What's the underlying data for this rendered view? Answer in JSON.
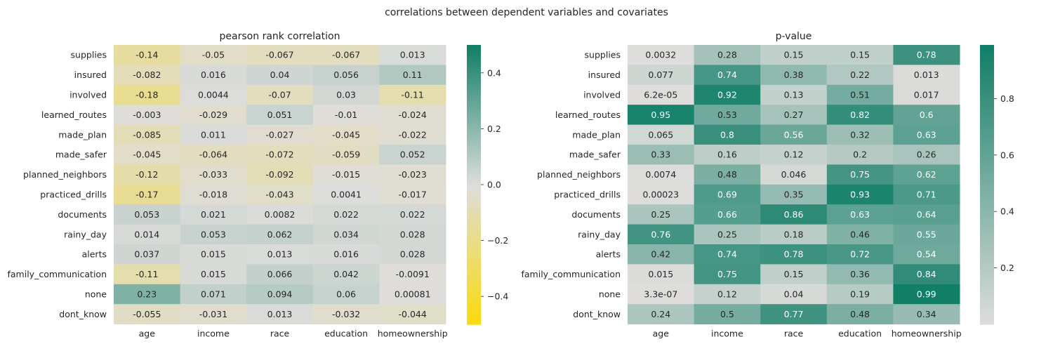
{
  "figure": {
    "title": "correlations between dependent variables and covariates"
  },
  "chart_data": [
    {
      "type": "heatmap",
      "title": "pearson rank correlation",
      "rows": [
        "supplies",
        "insured",
        "involved",
        "learned_routes",
        "made_plan",
        "made_safer",
        "planned_neighbors",
        "practiced_drills",
        "documents",
        "rainy_day",
        "alerts",
        "family_communication",
        "none",
        "dont_know"
      ],
      "columns": [
        "age",
        "income",
        "race",
        "education",
        "homeownership"
      ],
      "values": [
        [
          -0.14,
          -0.05,
          -0.067,
          -0.067,
          0.013
        ],
        [
          -0.082,
          0.016,
          0.04,
          0.056,
          0.11
        ],
        [
          -0.18,
          0.0044,
          -0.07,
          0.03,
          -0.11
        ],
        [
          -0.003,
          -0.029,
          0.051,
          -0.01,
          -0.024
        ],
        [
          -0.085,
          0.011,
          -0.027,
          -0.045,
          -0.022
        ],
        [
          -0.045,
          -0.064,
          -0.072,
          -0.059,
          0.052
        ],
        [
          -0.12,
          -0.033,
          -0.092,
          -0.015,
          -0.023
        ],
        [
          -0.17,
          -0.018,
          -0.043,
          0.0041,
          -0.017
        ],
        [
          0.053,
          0.021,
          0.0082,
          0.022,
          0.022
        ],
        [
          0.014,
          0.053,
          0.062,
          0.034,
          0.028
        ],
        [
          0.037,
          0.015,
          0.013,
          0.016,
          0.028
        ],
        [
          -0.11,
          0.015,
          0.066,
          0.042,
          -0.0091
        ],
        [
          0.23,
          0.071,
          0.094,
          0.06,
          0.00081
        ],
        [
          -0.055,
          -0.031,
          0.013,
          -0.032,
          -0.044
        ]
      ],
      "labels": [
        [
          "-0.14",
          "-0.05",
          "-0.067",
          "-0.067",
          "0.013"
        ],
        [
          "-0.082",
          "0.016",
          "0.04",
          "0.056",
          "0.11"
        ],
        [
          "-0.18",
          "0.0044",
          "-0.07",
          "0.03",
          "-0.11"
        ],
        [
          "-0.003",
          "-0.029",
          "0.051",
          "-0.01",
          "-0.024"
        ],
        [
          "-0.085",
          "0.011",
          "-0.027",
          "-0.045",
          "-0.022"
        ],
        [
          "-0.045",
          "-0.064",
          "-0.072",
          "-0.059",
          "0.052"
        ],
        [
          "-0.12",
          "-0.033",
          "-0.092",
          "-0.015",
          "-0.023"
        ],
        [
          "-0.17",
          "-0.018",
          "-0.043",
          "0.0041",
          "-0.017"
        ],
        [
          "0.053",
          "0.021",
          "0.0082",
          "0.022",
          "0.022"
        ],
        [
          "0.014",
          "0.053",
          "0.062",
          "0.034",
          "0.028"
        ],
        [
          "0.037",
          "0.015",
          "0.013",
          "0.016",
          "0.028"
        ],
        [
          "-0.11",
          "0.015",
          "0.066",
          "0.042",
          "-0.0091"
        ],
        [
          "0.23",
          "0.071",
          "0.094",
          "0.06",
          "0.00081"
        ],
        [
          "-0.055",
          "-0.031",
          "0.013",
          "-0.032",
          "-0.044"
        ]
      ],
      "color_range": [
        -0.5,
        0.5
      ],
      "colorbar_ticks": [
        -0.4,
        -0.2,
        0.0,
        0.2,
        0.4
      ],
      "colorbar_tick_labels": [
        "−0.4",
        "−0.2",
        "0.0",
        "0.2",
        "0.4"
      ],
      "colormap": [
        "#fadb0a",
        "#dedddb",
        "#117e66"
      ]
    },
    {
      "type": "heatmap",
      "title": "p-value",
      "rows": [
        "supplies",
        "insured",
        "involved",
        "learned_routes",
        "made_plan",
        "made_safer",
        "planned_neighbors",
        "practiced_drills",
        "documents",
        "rainy_day",
        "alerts",
        "family_communication",
        "none",
        "dont_know"
      ],
      "columns": [
        "age",
        "income",
        "race",
        "education",
        "homeownership"
      ],
      "values": [
        [
          0.0032,
          0.28,
          0.15,
          0.15,
          0.78
        ],
        [
          0.077,
          0.74,
          0.38,
          0.22,
          0.013
        ],
        [
          6.2e-05,
          0.92,
          0.13,
          0.51,
          0.017
        ],
        [
          0.95,
          0.53,
          0.27,
          0.82,
          0.6
        ],
        [
          0.065,
          0.8,
          0.56,
          0.32,
          0.63
        ],
        [
          0.33,
          0.16,
          0.12,
          0.2,
          0.26
        ],
        [
          0.0074,
          0.48,
          0.046,
          0.75,
          0.62
        ],
        [
          0.00023,
          0.69,
          0.35,
          0.93,
          0.71
        ],
        [
          0.25,
          0.66,
          0.86,
          0.63,
          0.64
        ],
        [
          0.76,
          0.25,
          0.18,
          0.46,
          0.55
        ],
        [
          0.42,
          0.74,
          0.78,
          0.72,
          0.54
        ],
        [
          0.015,
          0.75,
          0.15,
          0.36,
          0.84
        ],
        [
          3.3e-07,
          0.12,
          0.04,
          0.19,
          0.99
        ],
        [
          0.24,
          0.5,
          0.77,
          0.48,
          0.34
        ]
      ],
      "labels": [
        [
          "0.0032",
          "0.28",
          "0.15",
          "0.15",
          "0.78"
        ],
        [
          "0.077",
          "0.74",
          "0.38",
          "0.22",
          "0.013"
        ],
        [
          "6.2e-05",
          "0.92",
          "0.13",
          "0.51",
          "0.017"
        ],
        [
          "0.95",
          "0.53",
          "0.27",
          "0.82",
          "0.6"
        ],
        [
          "0.065",
          "0.8",
          "0.56",
          "0.32",
          "0.63"
        ],
        [
          "0.33",
          "0.16",
          "0.12",
          "0.2",
          "0.26"
        ],
        [
          "0.0074",
          "0.48",
          "0.046",
          "0.75",
          "0.62"
        ],
        [
          "0.00023",
          "0.69",
          "0.35",
          "0.93",
          "0.71"
        ],
        [
          "0.25",
          "0.66",
          "0.86",
          "0.63",
          "0.64"
        ],
        [
          "0.76",
          "0.25",
          "0.18",
          "0.46",
          "0.55"
        ],
        [
          "0.42",
          "0.74",
          "0.78",
          "0.72",
          "0.54"
        ],
        [
          "0.015",
          "0.75",
          "0.15",
          "0.36",
          "0.84"
        ],
        [
          "3.3e-07",
          "0.12",
          "0.04",
          "0.19",
          "0.99"
        ],
        [
          "0.24",
          "0.5",
          "0.77",
          "0.48",
          "0.34"
        ]
      ],
      "color_range": [
        0.0,
        0.99
      ],
      "colorbar_ticks": [
        0.2,
        0.4,
        0.6,
        0.8
      ],
      "colorbar_tick_labels": [
        "0.2",
        "0.4",
        "0.6",
        "0.8"
      ],
      "colormap": [
        "#dedddb",
        "#117e66"
      ]
    }
  ]
}
